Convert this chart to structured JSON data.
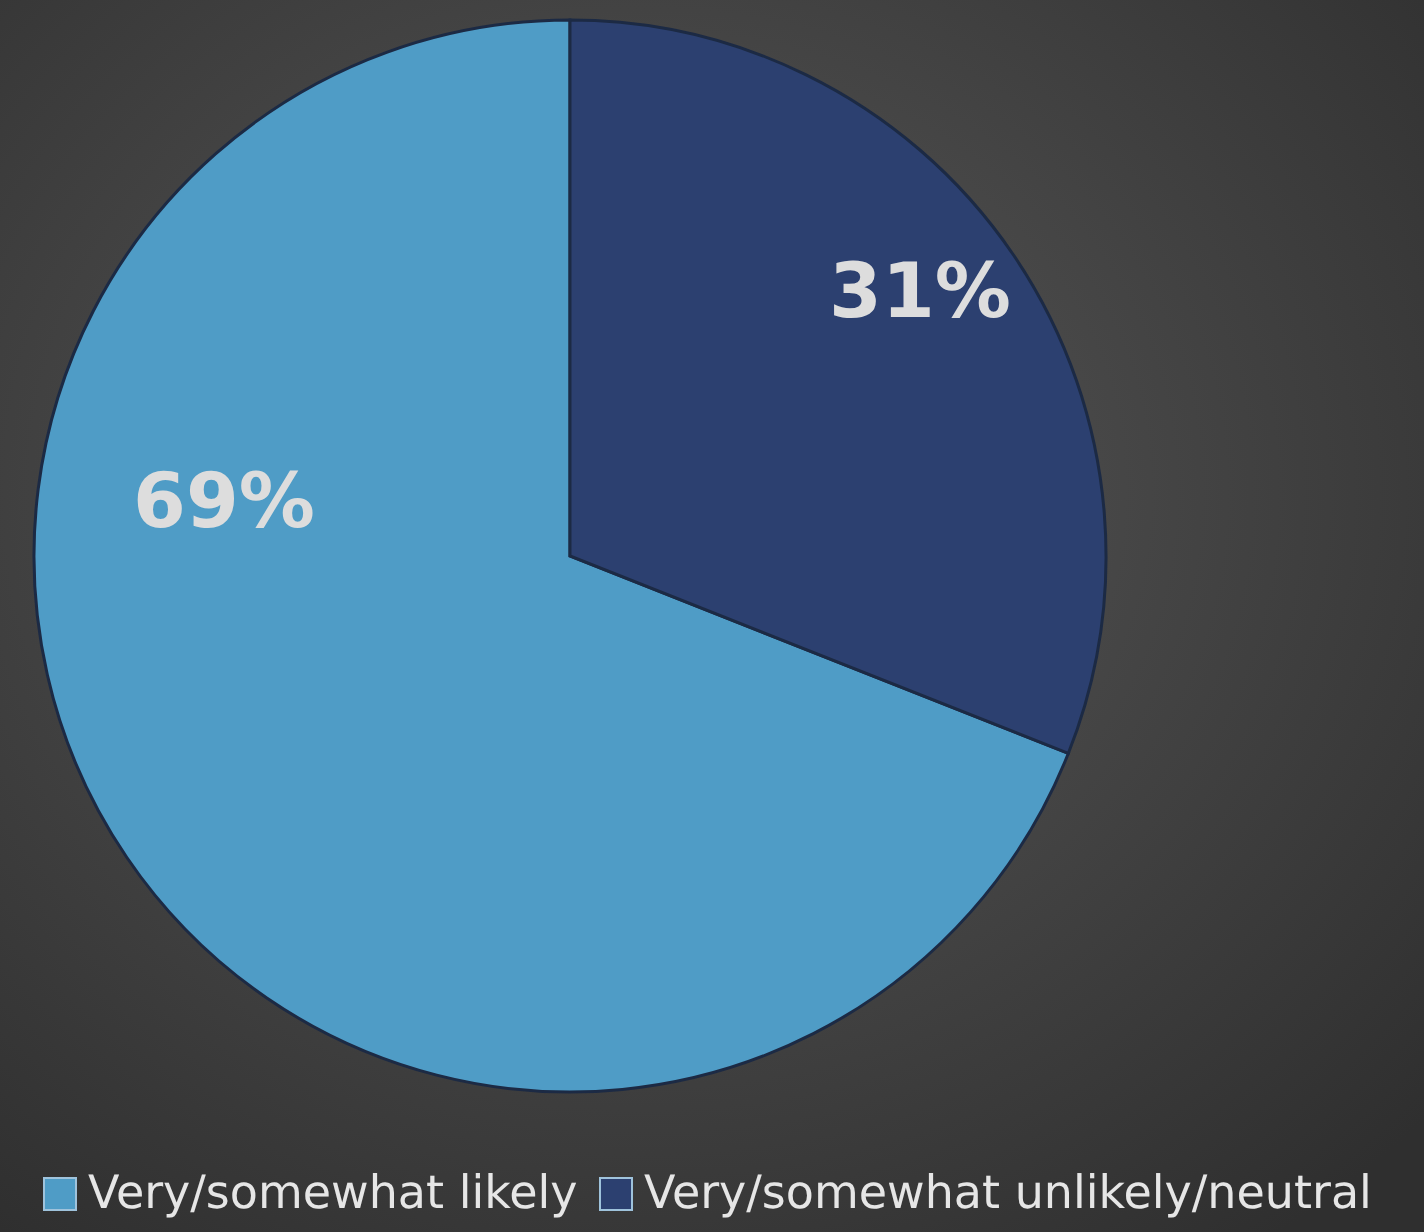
{
  "chart_data": {
    "type": "pie",
    "categories": [
      "Very/somewhat likely",
      "Very/somewhat unlikely/neutral"
    ],
    "values": [
      69,
      31
    ],
    "colors": [
      "#4f9cc6",
      "#2c4070"
    ],
    "value_labels": [
      "69%",
      "31%"
    ],
    "legend": "bottom"
  }
}
